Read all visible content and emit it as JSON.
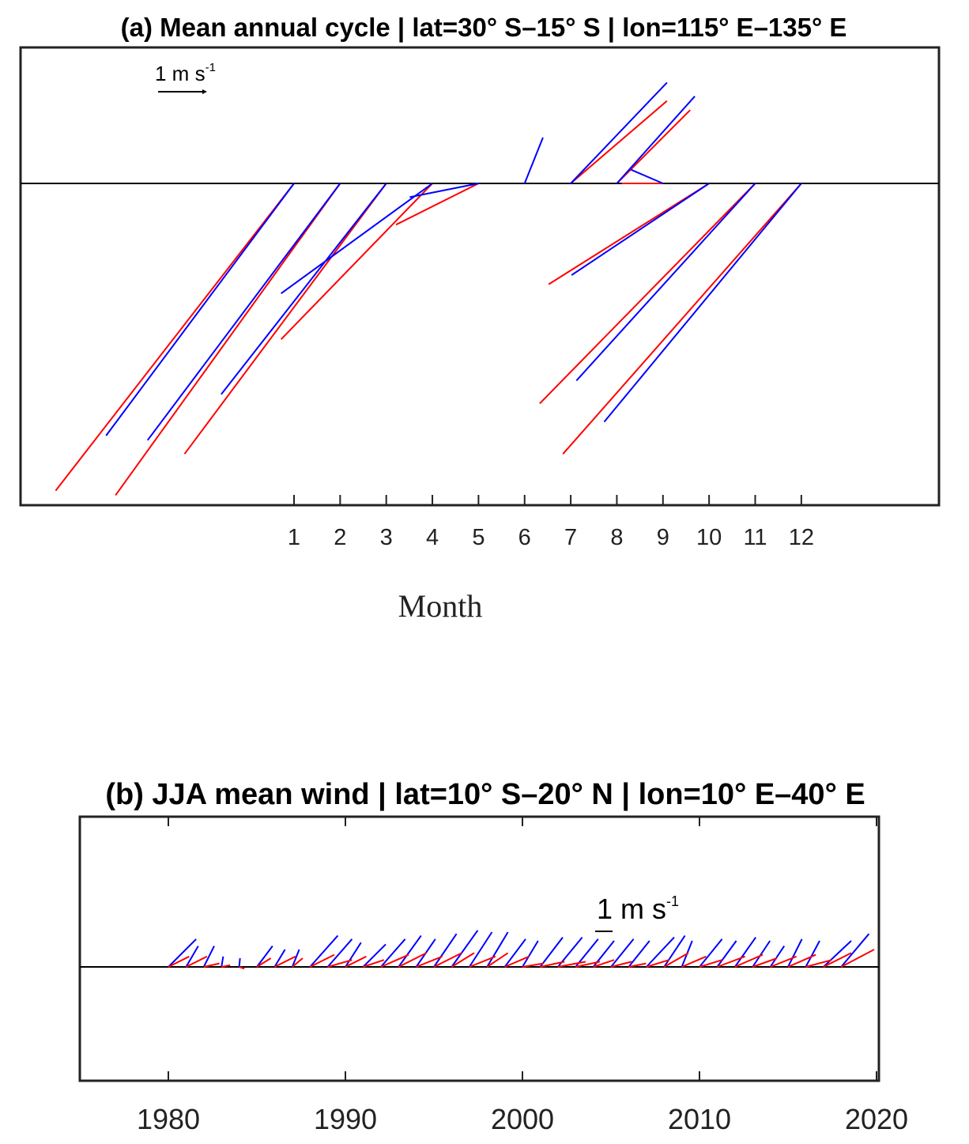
{
  "chart_data": [
    {
      "type": "vector",
      "title": "(a) Mean annual cycle | lat=30° S–15° S | lon=115° E–135° E",
      "xlabel": "Month",
      "x_ticks": [
        1,
        2,
        3,
        4,
        5,
        6,
        7,
        8,
        9,
        10,
        11,
        12
      ],
      "x_tick_labels": [
        "1",
        "2",
        "3",
        "4",
        "5",
        "6",
        "7",
        "8",
        "9",
        "10",
        "11",
        "12"
      ],
      "xlim": [
        -5,
        15
      ],
      "scale_label": "1 m s",
      "scale_label_sup": "-1",
      "series": [
        {
          "color": "#ff0000",
          "vectors": [
            {
              "x": 1,
              "u": -5.2,
              "v": -6.7
            },
            {
              "x": 2,
              "u": -4.9,
              "v": -6.8
            },
            {
              "x": 3,
              "u": -4.4,
              "v": -5.9
            },
            {
              "x": 4,
              "u": -3.3,
              "v": -3.4
            },
            {
              "x": 5,
              "u": -1.8,
              "v": -0.9
            },
            {
              "x": 6,
              "u": 0.0,
              "v": 0.0
            },
            {
              "x": 7,
              "u": 2.1,
              "v": 1.8
            },
            {
              "x": 8,
              "u": 1.6,
              "v": 1.6
            },
            {
              "x": 9,
              "u": -0.9,
              "v": 0.0
            },
            {
              "x": 10,
              "u": -3.5,
              "v": -2.2
            },
            {
              "x": 11,
              "u": -4.7,
              "v": -4.8
            },
            {
              "x": 12,
              "u": -5.2,
              "v": -5.9
            }
          ]
        },
        {
          "color": "#0000ff",
          "vectors": [
            {
              "x": 1,
              "u": -4.1,
              "v": -5.5
            },
            {
              "x": 2,
              "u": -4.2,
              "v": -5.6
            },
            {
              "x": 3,
              "u": -3.6,
              "v": -4.6
            },
            {
              "x": 4,
              "u": -3.3,
              "v": -2.4
            },
            {
              "x": 5,
              "u": -1.5,
              "v": -0.3
            },
            {
              "x": 6,
              "u": 0.4,
              "v": 1.0
            },
            {
              "x": 7,
              "u": 2.1,
              "v": 2.2
            },
            {
              "x": 8,
              "u": 1.7,
              "v": 1.9
            },
            {
              "x": 9,
              "u": -0.7,
              "v": 0.3
            },
            {
              "x": 10,
              "u": -3.0,
              "v": -2.0
            },
            {
              "x": 11,
              "u": -3.9,
              "v": -4.3
            },
            {
              "x": 12,
              "u": -4.3,
              "v": -5.2
            }
          ]
        }
      ]
    },
    {
      "type": "vector",
      "title": "(b) JJA mean wind | lat=10° S–20° N | lon=10° E–40° E",
      "x_ticks": [
        1980,
        1990,
        2000,
        2010,
        2020
      ],
      "x_tick_labels": [
        "1980",
        "1990",
        "2000",
        "2010",
        "2020"
      ],
      "xlim": [
        1975,
        2020
      ],
      "scale_label": "1 m s",
      "scale_label_sup": "-1",
      "series": [
        {
          "color": "#0000ff",
          "years": [
            1980,
            1981,
            1982,
            1983,
            1984,
            1985,
            1986,
            1987,
            1988,
            1989,
            1990,
            1991,
            1992,
            1993,
            1994,
            1995,
            1996,
            1997,
            1998,
            1999,
            2000,
            2001,
            2002,
            2003,
            2004,
            2005,
            2006,
            2007,
            2008,
            2009,
            2010,
            2011,
            2012,
            2013,
            2014,
            2015,
            2016,
            2017,
            2018
          ],
          "u": [
            1.6,
            0.7,
            0.6,
            0.1,
            0.05,
            0.9,
            0.6,
            0.4,
            1.6,
            1.4,
            0.9,
            1.3,
            1.4,
            1.3,
            1.1,
            1.3,
            1.5,
            1.3,
            1.2,
            1.2,
            0.9,
            1.3,
            1.4,
            1.3,
            1.2,
            1.3,
            1.2,
            1.6,
            1.2,
            0.6,
            1.3,
            1.1,
            1.2,
            1.0,
            0.8,
            0.8,
            0.8,
            1.6,
            1.6
          ],
          "v": [
            1.6,
            1.2,
            1.2,
            0.6,
            0.5,
            1.2,
            1.0,
            1.0,
            1.8,
            1.6,
            1.4,
            1.3,
            1.6,
            1.8,
            1.6,
            1.9,
            2.1,
            2.0,
            2.0,
            1.6,
            1.5,
            1.7,
            1.7,
            1.6,
            1.5,
            1.6,
            1.5,
            1.7,
            1.8,
            1.5,
            1.6,
            1.5,
            1.7,
            1.5,
            1.2,
            1.6,
            1.5,
            1.5,
            1.9
          ]
        },
        {
          "color": "#ff0000",
          "years": [
            1980,
            1981,
            1982,
            1983,
            1984,
            1985,
            1986,
            1987,
            1988,
            1989,
            1990,
            1991,
            1992,
            1993,
            1994,
            1995,
            1996,
            1997,
            1998,
            1999,
            2000,
            2001,
            2002,
            2003,
            2004,
            2005,
            2006,
            2007,
            2008,
            2009,
            2010,
            2011,
            2012,
            2013,
            2014,
            2015,
            2016,
            2017,
            2018
          ],
          "u": [
            1.2,
            1.2,
            0.9,
            0.5,
            0.3,
            0.8,
            1.2,
            0.6,
            1.4,
            1.4,
            1.2,
            1.2,
            1.6,
            1.6,
            1.5,
            1.6,
            1.3,
            1.5,
            1.2,
            1.4,
            1.2,
            1.4,
            1.6,
            1.4,
            1.2,
            1.2,
            1.0,
            1.3,
            1.4,
            1.4,
            1.3,
            1.6,
            1.6,
            1.4,
            1.5,
            1.6,
            1.5,
            1.6,
            1.9
          ],
          "v": [
            0.6,
            0.6,
            0.2,
            0.1,
            -0.1,
            0.5,
            0.6,
            0.5,
            0.7,
            0.4,
            0.6,
            0.4,
            0.7,
            0.8,
            0.6,
            0.8,
            0.8,
            0.6,
            0.8,
            0.6,
            0.2,
            0.3,
            0.3,
            0.3,
            0.4,
            0.3,
            0.2,
            0.4,
            0.8,
            0.6,
            0.4,
            0.6,
            0.7,
            0.5,
            0.6,
            0.7,
            0.4,
            0.8,
            1.0
          ]
        }
      ]
    }
  ]
}
